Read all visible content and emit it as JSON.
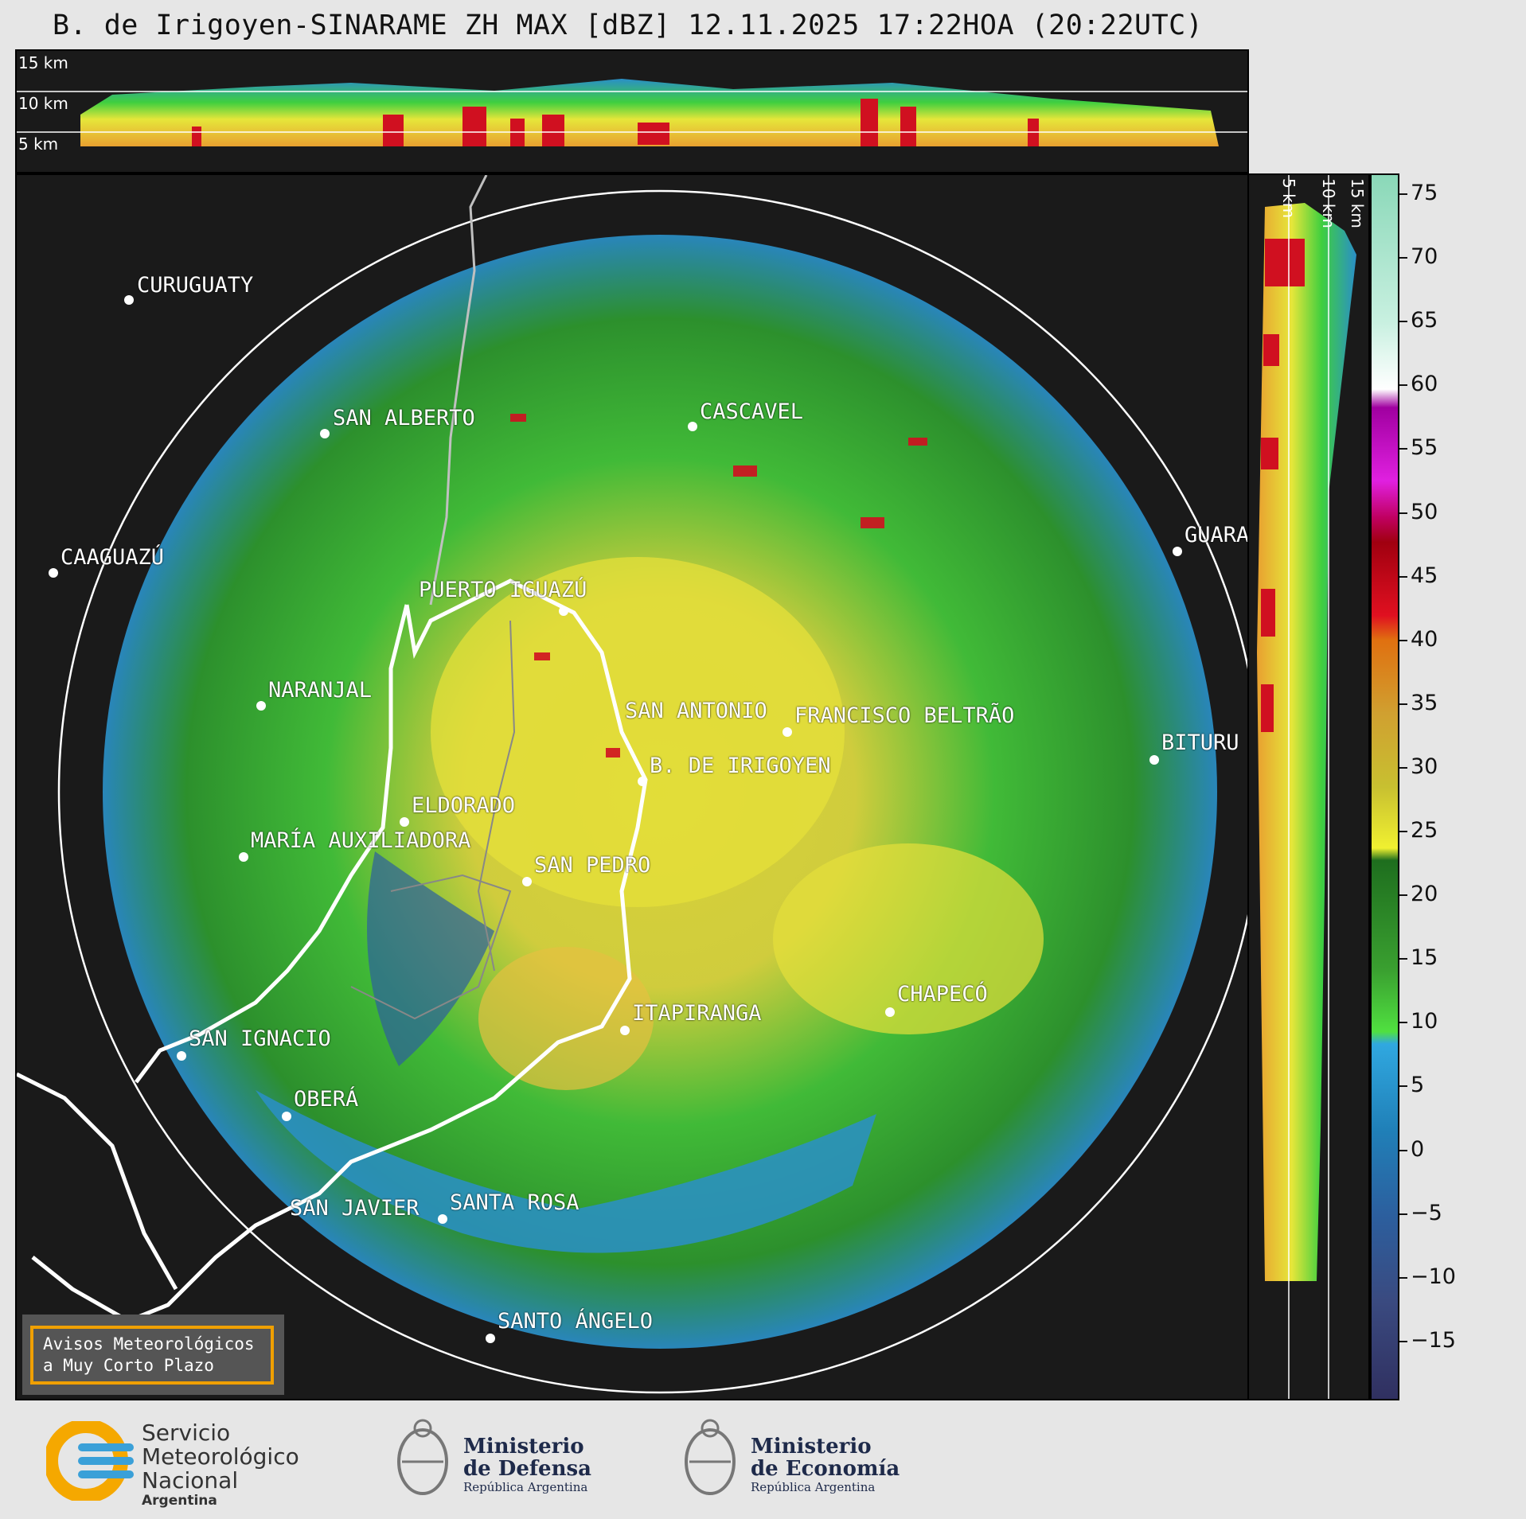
{
  "title": "B. de Irigoyen-SINARAME ZH MAX [dBZ] 12.11.2025 17:22HOA (20:22UTC)",
  "top_panel": {
    "altitude_labels": [
      "15 km",
      "10 km",
      "5 km"
    ]
  },
  "side_panel": {
    "altitude_labels": [
      "5 km",
      "10 km",
      "15 km"
    ]
  },
  "colorbar": {
    "unit": "dBZ",
    "tick_labels": [
      "75",
      "70",
      "65",
      "60",
      "55",
      "50",
      "45",
      "40",
      "35",
      "30",
      "25",
      "20",
      "15",
      "10",
      "5",
      "0",
      "−5",
      "−10",
      "−15"
    ],
    "range": [
      -19.5,
      76.5
    ]
  },
  "cities": [
    {
      "name": "CURUGUATY"
    },
    {
      "name": "SAN ALBERTO"
    },
    {
      "name": "CASCAVEL"
    },
    {
      "name": "CAAGUAZÚ"
    },
    {
      "name": "GUARA"
    },
    {
      "name": "PUERTO IGUAZÚ"
    },
    {
      "name": "NARANJAL"
    },
    {
      "name": "SAN ANTONIO"
    },
    {
      "name": "FRANCISCO BELTRÃO"
    },
    {
      "name": "BITURU"
    },
    {
      "name": "B. DE IRIGOYEN"
    },
    {
      "name": "ELDORADO"
    },
    {
      "name": "MARÍA AUXILIADORA"
    },
    {
      "name": "SAN PEDRO"
    },
    {
      "name": "CHAPECÓ"
    },
    {
      "name": "ITAPIRANGA"
    },
    {
      "name": "SAN IGNACIO"
    },
    {
      "name": "OBERÁ"
    },
    {
      "name": "SAN JAVIER"
    },
    {
      "name": "SANTA ROSA"
    },
    {
      "name": "SANTO ÁNGELO"
    }
  ],
  "aviso": {
    "line1": "Avisos Meteorológicos",
    "line2": "a Muy Corto Plazo"
  },
  "logos": {
    "smn": {
      "line1": "Servicio",
      "line2": "Meteorológico",
      "line3": "Nacional",
      "country": "Argentina"
    },
    "defensa": {
      "line1": "Ministerio",
      "line2": "de Defensa",
      "country": "República Argentina"
    },
    "economia": {
      "line1": "Ministerio",
      "line2": "de Economía",
      "country": "República Argentina"
    }
  },
  "colors": {
    "background": "#1a1a1a",
    "range_ring": "#ffffff",
    "border_province": "#ffffff",
    "aviso_border": "#f0a000",
    "smn_orange": "#f5a800",
    "smn_blue": "#3aa0d8"
  }
}
